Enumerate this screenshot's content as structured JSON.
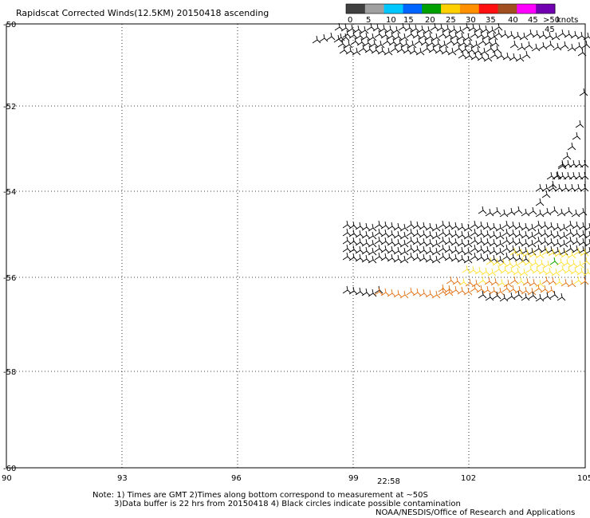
{
  "title": "Rapidscat Corrected Winds(12.5KM) 20150418 ascending",
  "legend": {
    "unit_label": "knots",
    "ticks": [
      "0",
      "5",
      "10",
      "15",
      "20",
      "25",
      "30",
      "35",
      "40",
      "45",
      ">50"
    ],
    "colors": [
      "#404040",
      "#a0a0a0",
      "#00c8ff",
      "#0064ff",
      "#00a000",
      "#ffd000",
      "#ff9000",
      "#ff1010",
      "#a05020",
      "#ff00ff",
      "#7000b0"
    ]
  },
  "axes": {
    "lon_ticks": [
      "90",
      "93",
      "96",
      "99",
      "102",
      "105"
    ],
    "lat_ticks": [
      "-50",
      "-52",
      "-54",
      "-56",
      "-58",
      "-60"
    ]
  },
  "time_label": "22:58",
  "time_color": "#800080",
  "orange_label": "45",
  "notes": {
    "line1": "Note: 1) Times are GMT 2)Times along bottom correspond to measurement at ~50S",
    "line2": "3)Data buffer is 22 hrs from 20150418 4) Black circles indicate possible contamination",
    "credit": "NOAA/NESDIS/Office of Research and Applications"
  },
  "barb_colors": {
    "calm": "#000000",
    "moderate": "#ffe030",
    "strong": "#e07010",
    "green": "#00a000"
  }
}
